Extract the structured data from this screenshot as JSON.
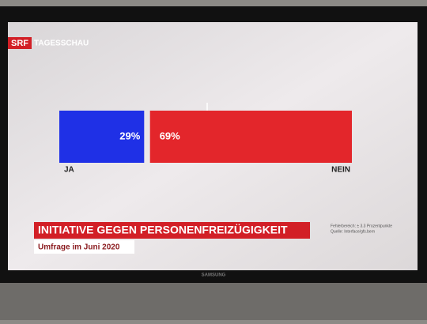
{
  "header": {
    "logo": "SRF",
    "channel": "TAGESSCHAU"
  },
  "chart_data": {
    "type": "bar",
    "title": "INITIATIVE GEGEN PERSONENFREIZÜGIGKEIT",
    "subtitle": "Umfrage im Juni 2020",
    "categories": [
      "JA",
      "NEIN"
    ],
    "values": [
      29,
      69
    ],
    "value_labels": [
      "29%",
      "69%"
    ],
    "colors": [
      "#1f30e6",
      "#e3262b"
    ],
    "xlim": [
      0,
      100
    ],
    "notes": [
      "Fehlerbereich: ± 3.3 Prozentpunkte",
      "Quelle: Interface/gfs.bern"
    ]
  },
  "tv_brand": "SAMSUNG"
}
